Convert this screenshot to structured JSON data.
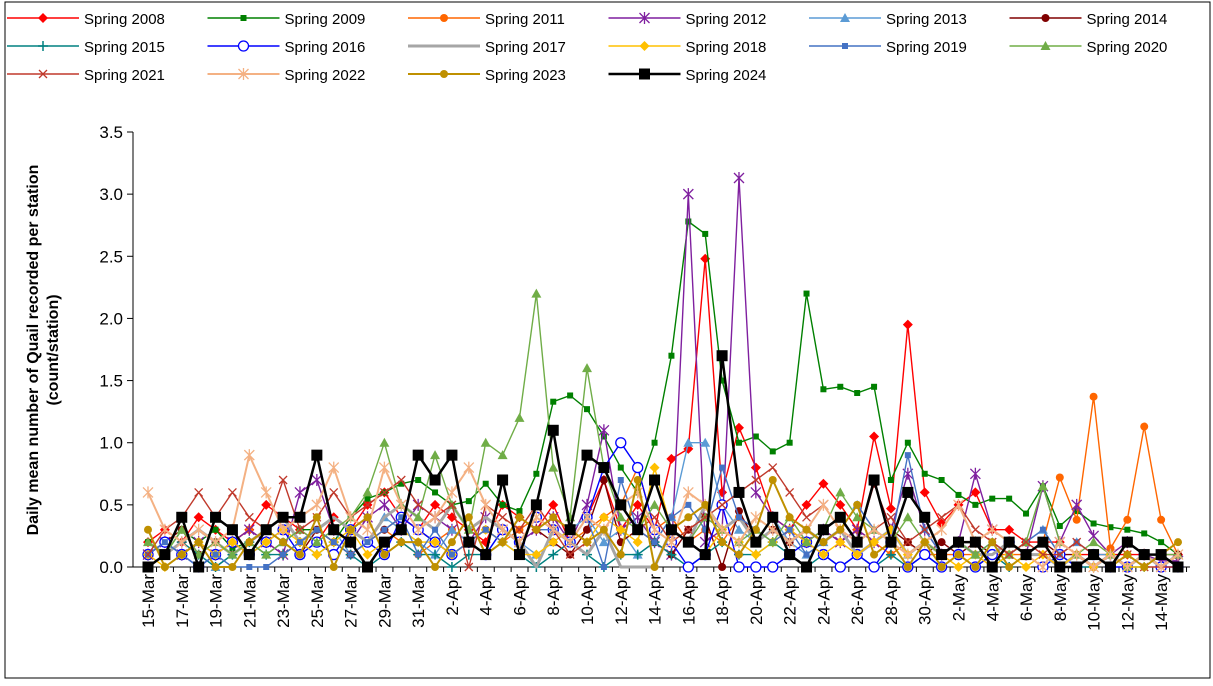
{
  "chart_data": {
    "type": "line",
    "ylabel": [
      "Daily mean number of Quail recorded per station",
      "(count/station)"
    ],
    "categories": [
      "15-Mar",
      null,
      "17-Mar",
      null,
      "19-Mar",
      null,
      "21-Mar",
      null,
      "23-Mar",
      null,
      "25-Mar",
      null,
      "27-Mar",
      null,
      "29-Mar",
      null,
      "31-Mar",
      null,
      "2-Apr",
      null,
      "4-Apr",
      null,
      "6-Apr",
      null,
      "8-Apr",
      null,
      "10-Apr",
      null,
      "12-Apr",
      null,
      "14-Apr",
      null,
      "16-Apr",
      null,
      "18-Apr",
      null,
      "20-Apr",
      null,
      "22-Apr",
      null,
      "24-Apr",
      null,
      "26-Apr",
      null,
      "28-Apr",
      null,
      "30-Apr",
      null,
      "2-May",
      null,
      "4-May",
      null,
      "6-May",
      null,
      "8-May",
      null,
      "10-May",
      null,
      "12-May",
      null,
      "14-May",
      null
    ],
    "ylim": [
      0,
      3.5
    ],
    "yticks": [
      {
        "value": 0,
        "label": "0.0"
      },
      0.5,
      {
        "value": 1,
        "label": "1.0"
      },
      1.5,
      {
        "value": 2,
        "label": "2.0"
      },
      2.5,
      {
        "value": 3,
        "label": "3.0"
      },
      3.5
    ],
    "grid": false,
    "series": [
      {
        "name": "Spring 2008",
        "color": "#ff0000",
        "marker": "diamond",
        "values": [
          0.2,
          0.3,
          0.2,
          0.4,
          0.3,
          0.2,
          0.3,
          0.5,
          0.4,
          0.3,
          0.2,
          0.4,
          0.3,
          0.5,
          0.6,
          0.4,
          0.3,
          0.5,
          0.4,
          0.3,
          0.2,
          0.5,
          0.4,
          0.3,
          0.5,
          0.2,
          0.4,
          0.7,
          0.3,
          0.5,
          0.3,
          0.87,
          0.95,
          2.48,
          0.6,
          1.12,
          0.8,
          0.4,
          0.3,
          0.5,
          0.67,
          0.5,
          0.3,
          1.05,
          0.47,
          1.95,
          0.6,
          0.35,
          0.5,
          0.6,
          0.3,
          0.3,
          0.2,
          0.2,
          0.2,
          0.1,
          0.1,
          0.1,
          0.1,
          0.1,
          0.1,
          0.1
        ]
      },
      {
        "name": "Spring 2009",
        "color": "#008000",
        "marker": "square",
        "values": [
          0.2,
          0.1,
          0.3,
          0.2,
          0.3,
          0.15,
          0.2,
          0.1,
          0.2,
          0.3,
          0.3,
          0.2,
          0.4,
          0.55,
          0.6,
          0.67,
          0.7,
          0.6,
          0.5,
          0.53,
          0.67,
          0.5,
          0.45,
          0.75,
          1.33,
          1.38,
          1.27,
          1.05,
          0.8,
          0.6,
          1.0,
          1.7,
          2.78,
          2.68,
          1.5,
          1.0,
          1.05,
          0.93,
          1.0,
          2.2,
          1.43,
          1.45,
          1.4,
          1.45,
          0.7,
          1.0,
          0.75,
          0.7,
          0.58,
          0.5,
          0.55,
          0.55,
          0.43,
          0.65,
          0.33,
          0.45,
          0.35,
          0.32,
          0.3,
          0.27,
          0.2,
          0.1
        ]
      },
      {
        "name": "Spring 2011",
        "color": "#ff6600",
        "marker": "circle",
        "values": [
          0.1,
          0.2,
          0.1,
          0.2,
          0.1,
          0.2,
          0.3,
          0.2,
          0.1,
          0.2,
          0.3,
          0.2,
          0.1,
          0.2,
          0.3,
          0.2,
          0.1,
          0.2,
          0.3,
          0.2,
          0.3,
          0.2,
          0.3,
          0.4,
          0.3,
          0.2,
          0.3,
          0.4,
          0.5,
          0.8,
          0.3,
          0.4,
          0.2,
          0.3,
          0.2,
          0.4,
          0.3,
          0.2,
          0.3,
          0.2,
          0.3,
          0.2,
          0.3,
          0.2,
          0.1,
          0.2,
          0.1,
          0.1,
          0.1,
          0.1,
          0.1,
          0.1,
          0.1,
          0.2,
          0.72,
          0.38,
          1.37,
          0.15,
          0.38,
          1.13,
          0.38,
          0.1
        ]
      },
      {
        "name": "Spring 2012",
        "color": "#7f1f9f",
        "marker": "asterisk",
        "values": [
          0.1,
          0.2,
          0.1,
          0.2,
          0.1,
          0.2,
          0.3,
          0.2,
          0.1,
          0.6,
          0.7,
          0.3,
          0.2,
          0.4,
          0.5,
          0.3,
          0.5,
          0.4,
          0.3,
          0.2,
          0.4,
          0.3,
          0.2,
          0.3,
          0.4,
          0.2,
          0.5,
          1.1,
          0.3,
          0.4,
          0.2,
          0.1,
          3.0,
          0.2,
          0.3,
          3.13,
          0.6,
          0.4,
          0.3,
          0.2,
          0.3,
          0.2,
          0.3,
          0.2,
          0.3,
          0.75,
          0.3,
          0.1,
          0.2,
          0.75,
          0.3,
          0.2,
          0.1,
          0.65,
          0.2,
          0.5,
          0.25,
          0.1,
          0.2,
          0.1,
          0.05,
          0.05
        ]
      },
      {
        "name": "Spring 2013",
        "color": "#5b9bd5",
        "marker": "triangle",
        "values": [
          0.1,
          0.2,
          0.1,
          0.2,
          0.0,
          0.1,
          0.2,
          0.3,
          0.2,
          0.1,
          0.2,
          0.3,
          0.1,
          0.2,
          0.4,
          0.3,
          0.2,
          0.1,
          0.3,
          0.2,
          0.1,
          0.3,
          0.2,
          0.1,
          0.2,
          0.3,
          0.4,
          0.2,
          0.3,
          0.1,
          0.2,
          0.4,
          1.0,
          1.0,
          0.5,
          0.3,
          0.2,
          0.4,
          0.2,
          0.1,
          0.2,
          0.3,
          0.5,
          0.3,
          0.2,
          0.1,
          0.2,
          0.1,
          0.2,
          0.1,
          0.2,
          0.1,
          0.2,
          0.3,
          0.1,
          0.2,
          0.1,
          0.1,
          0.0,
          0.1,
          0.1,
          0.0
        ]
      },
      {
        "name": "Spring 2014",
        "color": "#800000",
        "marker": "circle",
        "values": [
          0.1,
          0.2,
          0.3,
          0.1,
          0.2,
          0.1,
          0.2,
          0.3,
          0.2,
          0.1,
          0.3,
          0.2,
          0.1,
          0.2,
          0.3,
          0.4,
          0.3,
          0.2,
          0.1,
          0.2,
          0.3,
          0.2,
          0.4,
          0.3,
          0.2,
          0.1,
          0.3,
          0.7,
          0.2,
          0.3,
          0.2,
          0.1,
          0.3,
          0.4,
          0.0,
          0.45,
          0.2,
          0.3,
          0.2,
          0.3,
          0.2,
          0.3,
          0.2,
          0.67,
          0.3,
          0.2,
          0.1,
          0.2,
          0.1,
          0.2,
          0.1,
          0.2,
          0.1,
          0.2,
          0.1,
          0.1,
          0.0,
          0.1,
          0.0,
          0.1,
          0.0,
          0.1
        ]
      },
      {
        "name": "Spring 2015",
        "color": "#008080",
        "marker": "plus",
        "values": [
          0.0,
          0.1,
          0.2,
          0.1,
          0.0,
          0.1,
          0.2,
          0.1,
          0.1,
          0.2,
          0.1,
          0.2,
          0.1,
          0.0,
          0.1,
          0.2,
          0.1,
          0.1,
          0.0,
          0.1,
          0.1,
          0.2,
          0.1,
          0.0,
          0.1,
          0.2,
          0.1,
          0.0,
          0.1,
          0.1,
          0.2,
          0.1,
          0.0,
          0.1,
          0.2,
          0.1,
          0.1,
          0.2,
          0.1,
          0.0,
          0.1,
          0.0,
          0.1,
          0.0,
          0.1,
          0.0,
          0.1,
          0.0,
          0.1,
          0.0,
          0.1,
          0.0,
          0.1,
          0.0,
          0.1,
          0.0,
          0.0,
          0.1,
          0.0,
          0.0,
          0.1,
          0.0
        ]
      },
      {
        "name": "Spring 2016",
        "color": "#0000ff",
        "marker": "open-circle",
        "values": [
          0.1,
          0.2,
          0.1,
          0.0,
          0.1,
          0.2,
          0.1,
          0.2,
          0.3,
          0.1,
          0.2,
          0.1,
          0.3,
          0.2,
          0.1,
          0.4,
          0.3,
          0.2,
          0.1,
          0.2,
          0.1,
          0.3,
          0.2,
          0.4,
          0.3,
          0.2,
          0.4,
          0.8,
          1.0,
          0.8,
          0.3,
          0.2,
          0.0,
          0.1,
          0.5,
          0.0,
          0.0,
          0.0,
          0.1,
          0.2,
          0.1,
          0.0,
          0.1,
          0.0,
          0.2,
          0.0,
          0.1,
          0.0,
          0.1,
          0.0,
          0.1,
          0.2,
          0.1,
          0.0,
          0.1,
          0.0,
          0.1,
          0.0,
          0.0,
          0.1,
          0.0,
          0.0
        ]
      },
      {
        "name": "Spring 2017",
        "color": "#a6a6a6",
        "marker": "none",
        "width": 3,
        "values": [
          0.2,
          0.1,
          0.2,
          0.3,
          0.2,
          0.1,
          0.2,
          0.3,
          0.4,
          0.2,
          0.3,
          0.4,
          0.3,
          0.2,
          0.4,
          0.5,
          0.4,
          0.3,
          0.5,
          0.3,
          0.4,
          0.3,
          0.2,
          0.0,
          0.3,
          0.2,
          0.1,
          0.3,
          0.0,
          0.0,
          0.0,
          0.3,
          0.2,
          0.5,
          0.3,
          0.4,
          0.2,
          0.3,
          0.2,
          0.3,
          0.2,
          0.3,
          0.1,
          0.2,
          0.3,
          0.1,
          0.2,
          0.1,
          0.2,
          0.1,
          0.1,
          0.2,
          0.1,
          0.1,
          0.0,
          0.1,
          0.0,
          0.1,
          0.0,
          0.1,
          0.0,
          0.1
        ]
      },
      {
        "name": "Spring 2018",
        "color": "#ffc000",
        "marker": "diamond",
        "values": [
          0.1,
          0.0,
          0.1,
          0.2,
          0.1,
          0.2,
          0.1,
          0.2,
          0.3,
          0.2,
          0.1,
          0.2,
          0.3,
          0.1,
          0.2,
          0.3,
          0.2,
          0.2,
          0.1,
          0.2,
          0.3,
          0.2,
          0.1,
          0.1,
          0.2,
          0.3,
          0.2,
          0.4,
          0.3,
          0.2,
          0.8,
          0.3,
          0.2,
          0.1,
          0.3,
          0.2,
          0.1,
          0.2,
          0.3,
          0.2,
          0.1,
          0.2,
          0.1,
          0.2,
          0.3,
          0.1,
          0.2,
          0.1,
          0.0,
          0.1,
          0.0,
          0.1,
          0.0,
          0.1,
          0.0,
          0.1,
          0.0,
          0.1,
          0.0,
          0.0,
          0.1,
          0.0
        ]
      },
      {
        "name": "Spring 2019",
        "color": "#4472c4",
        "marker": "square",
        "values": [
          0.1,
          0.2,
          0.1,
          0.0,
          0.1,
          0.0,
          0.0,
          0.0,
          0.1,
          0.2,
          0.3,
          0.2,
          0.1,
          0.2,
          0.3,
          0.4,
          0.1,
          0.3,
          0.1,
          0.2,
          0.3,
          0.2,
          0.4,
          0.3,
          0.3,
          0.2,
          0.4,
          0.0,
          0.7,
          0.3,
          0.2,
          0.4,
          0.5,
          0.3,
          0.8,
          0.4,
          0.3,
          0.2,
          0.3,
          0.1,
          0.2,
          0.3,
          0.5,
          0.3,
          0.2,
          0.9,
          0.3,
          0.1,
          0.2,
          0.1,
          0.2,
          0.1,
          0.2,
          0.3,
          0.1,
          0.2,
          0.1,
          0.0,
          0.1,
          0.0,
          0.1,
          0.0
        ]
      },
      {
        "name": "Spring 2020",
        "color": "#70ad47",
        "marker": "triangle",
        "values": [
          0.2,
          0.1,
          0.3,
          0.1,
          0.2,
          0.1,
          0.2,
          0.1,
          0.2,
          0.3,
          0.2,
          0.3,
          0.4,
          0.6,
          1.0,
          0.5,
          0.4,
          0.9,
          0.5,
          0.3,
          1.0,
          0.9,
          1.2,
          2.2,
          0.8,
          0.4,
          1.6,
          0.8,
          0.4,
          0.3,
          0.5,
          0.3,
          0.2,
          0.4,
          0.3,
          0.2,
          0.3,
          0.2,
          0.4,
          0.2,
          0.3,
          0.6,
          0.4,
          0.3,
          0.2,
          0.4,
          0.2,
          0.1,
          0.2,
          0.1,
          0.2,
          0.1,
          0.2,
          0.65,
          0.2,
          0.1,
          0.2,
          0.1,
          0.0,
          0.1,
          0.1,
          0.1
        ]
      },
      {
        "name": "Spring 2021",
        "color": "#c0392b",
        "marker": "x",
        "values": [
          0.1,
          0.3,
          0.4,
          0.6,
          0.4,
          0.6,
          0.4,
          0.3,
          0.7,
          0.3,
          0.4,
          0.6,
          0.4,
          0.5,
          0.6,
          0.7,
          0.5,
          0.4,
          0.5,
          0.0,
          0.5,
          0.4,
          0.3,
          0.5,
          0.3,
          0.1,
          0.2,
          0.3,
          0.5,
          0.3,
          0.4,
          0.2,
          0.3,
          0.4,
          0.5,
          0.6,
          0.7,
          0.8,
          0.6,
          0.4,
          0.5,
          0.3,
          0.2,
          0.3,
          0.4,
          0.2,
          0.3,
          0.4,
          0.5,
          0.3,
          0.2,
          0.1,
          0.2,
          0.1,
          0.1,
          0.2,
          0.1,
          0.0,
          0.1,
          0.0,
          0.0,
          0.0
        ]
      },
      {
        "name": "Spring 2022",
        "color": "#f4b183",
        "marker": "asterisk",
        "width": 2,
        "values": [
          0.6,
          0.3,
          0.2,
          0.3,
          0.2,
          0.3,
          0.9,
          0.6,
          0.3,
          0.4,
          0.5,
          0.8,
          0.4,
          0.3,
          0.8,
          0.5,
          0.3,
          0.4,
          0.6,
          0.8,
          0.5,
          0.3,
          0.2,
          0.4,
          0.3,
          0.2,
          0.4,
          0.3,
          0.5,
          0.6,
          0.3,
          0.2,
          0.6,
          0.5,
          0.3,
          0.2,
          0.4,
          0.3,
          0.2,
          0.3,
          0.5,
          0.3,
          0.2,
          0.3,
          0.2,
          0.1,
          0.2,
          0.3,
          0.5,
          0.2,
          0.3,
          0.2,
          0.1,
          0.0,
          0.2,
          0.1,
          0.0,
          0.1,
          0.0,
          0.1,
          0.0,
          0.1
        ]
      },
      {
        "name": "Spring 2023",
        "color": "#bf9000",
        "marker": "circle",
        "width": 2,
        "values": [
          0.3,
          0.0,
          0.1,
          0.2,
          0.0,
          0.0,
          0.2,
          0.3,
          0.2,
          0.1,
          0.4,
          0.0,
          0.3,
          0.4,
          0.1,
          0.2,
          0.2,
          0.0,
          0.2,
          0.4,
          0.1,
          0.2,
          0.4,
          0.3,
          0.4,
          0.3,
          0.2,
          0.3,
          0.1,
          0.7,
          0.0,
          0.3,
          0.4,
          0.5,
          0.2,
          0.1,
          0.3,
          0.7,
          0.4,
          0.3,
          0.2,
          0.3,
          0.5,
          0.1,
          0.2,
          0.0,
          0.2,
          0.0,
          0.1,
          0.0,
          0.2,
          0.0,
          0.1,
          0.2,
          0.0,
          0.0,
          0.1,
          0.0,
          0.1,
          0.0,
          0.1,
          0.2
        ]
      },
      {
        "name": "Spring 2024",
        "color": "#000000",
        "marker": "big-square",
        "width": 2.5,
        "values": [
          0,
          0.1,
          0.4,
          0,
          0.4,
          0.3,
          0.1,
          0.3,
          0.4,
          0.4,
          0.9,
          0.3,
          0.2,
          0,
          0.2,
          0.3,
          0.9,
          0.7,
          0.9,
          0.2,
          0.1,
          0.7,
          0.1,
          0.5,
          1.1,
          0.3,
          0.9,
          0.8,
          0.5,
          0.3,
          0.7,
          0.3,
          0.2,
          0.1,
          1.7,
          0.6,
          0.2,
          0.4,
          0.1,
          0,
          0.3,
          0.4,
          0.2,
          0.7,
          0.2,
          0.6,
          0.4,
          0.1,
          0.2,
          0.2,
          0,
          0.2,
          0.1,
          0.2,
          0,
          0,
          0.1,
          0,
          0.2,
          0.1,
          0.1,
          0
        ]
      }
    ]
  }
}
